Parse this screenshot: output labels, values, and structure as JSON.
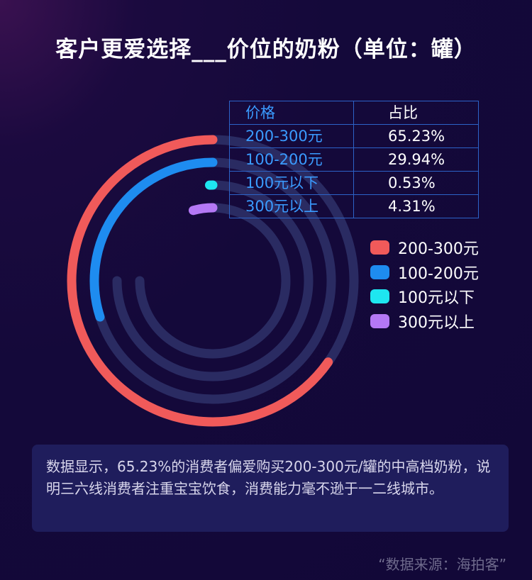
{
  "title": "客户更爱选择___价位的奶粉（单位：罐）",
  "table": {
    "headers": [
      "价格",
      "占比"
    ],
    "rows": [
      {
        "label": "200-300元",
        "value": "65.23%"
      },
      {
        "label": "100-200元",
        "value": "29.94%"
      },
      {
        "label": "100元以下",
        "value": "0.53%"
      },
      {
        "label": "300元以上",
        "value": "4.31%"
      }
    ]
  },
  "legend": [
    {
      "label": "200-300元",
      "color": "#f05a5a"
    },
    {
      "label": "100-200元",
      "color": "#1e8cf0"
    },
    {
      "label": "100元以下",
      "color": "#1ee6f0"
    },
    {
      "label": "300元以上",
      "color": "#b478f5"
    }
  ],
  "note": "数据显示，65.23%的消费者偏爱购买200-300元/罐的中高档奶粉，说明三六线消费者注重宝宝饮食，消费能力毫不逊于一二线城市。",
  "source": "“数据来源：海拍客”",
  "chart_data": {
    "type": "radial-bar",
    "title": "客户更爱选择___价位的奶粉（单位：罐）",
    "unit": "罐",
    "max_value": 100,
    "track_color": "#2a2b62",
    "series": [
      {
        "name": "200-300元",
        "value": 65.23,
        "color": "#f05a5a"
      },
      {
        "name": "100-200元",
        "value": 29.94,
        "color": "#1e8cf0"
      },
      {
        "name": "100元以下",
        "value": 0.53,
        "color": "#1ee6f0"
      },
      {
        "name": "300元以上",
        "value": 4.31,
        "color": "#b478f5"
      }
    ]
  }
}
